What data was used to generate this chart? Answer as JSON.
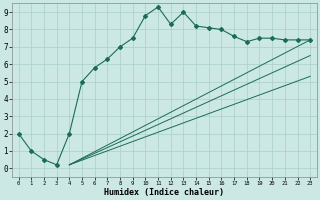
{
  "title": "",
  "xlabel": "Humidex (Indice chaleur)",
  "background_color": "#cce8e4",
  "grid_color": "#aacfca",
  "line_color": "#1a6b5a",
  "xlim": [
    -0.5,
    23.5
  ],
  "ylim": [
    -0.5,
    9.5
  ],
  "xticks": [
    0,
    1,
    2,
    3,
    4,
    5,
    6,
    7,
    8,
    9,
    10,
    11,
    12,
    13,
    14,
    15,
    16,
    17,
    18,
    19,
    20,
    21,
    22,
    23
  ],
  "yticks": [
    0,
    1,
    2,
    3,
    4,
    5,
    6,
    7,
    8,
    9
  ],
  "main_line_x": [
    0,
    1,
    2,
    3,
    4,
    5,
    6,
    7,
    8,
    9,
    10,
    11,
    12,
    13,
    14,
    15,
    16,
    17,
    18,
    19,
    20,
    21,
    22,
    23
  ],
  "main_line_y": [
    2.0,
    1.0,
    0.5,
    0.2,
    2.0,
    5.0,
    5.8,
    6.3,
    7.0,
    7.5,
    8.8,
    9.3,
    8.3,
    9.0,
    8.2,
    8.1,
    8.0,
    7.6,
    7.3,
    7.5,
    7.5,
    7.4,
    7.4,
    7.4
  ],
  "linear_line1_x": [
    4,
    23
  ],
  "linear_line1_y": [
    0.2,
    7.4
  ],
  "linear_line2_x": [
    4,
    23
  ],
  "linear_line2_y": [
    0.2,
    6.5
  ],
  "linear_line3_x": [
    4,
    23
  ],
  "linear_line3_y": [
    0.2,
    5.3
  ]
}
